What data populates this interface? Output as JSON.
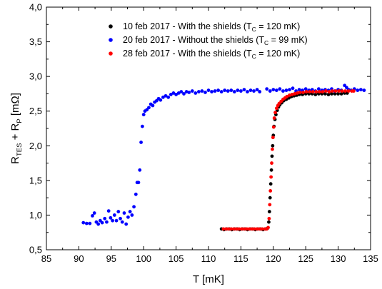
{
  "chart_data": {
    "type": "scatter",
    "xlabel": "T [mK]",
    "ylabel": {
      "R": "R",
      "sub1": "TES",
      "plus": " + R",
      "sub2": "P",
      "unit": " [mΩ]"
    },
    "xlim": [
      85,
      135
    ],
    "ylim": [
      0.5,
      4.0
    ],
    "xticks": [
      "85",
      "90",
      "95",
      "100",
      "105",
      "110",
      "115",
      "120",
      "125",
      "130",
      "135"
    ],
    "yticks": [
      "0,5",
      "1,0",
      "1,5",
      "2,0",
      "2,5",
      "3,0",
      "3,5",
      "4,0"
    ],
    "grid": false,
    "legend_position": "top-center",
    "series": [
      {
        "name": "10 feb 2017 - With the shields (T = 120 mK)",
        "legend": {
          "pre": "10 feb 2017 - With the shields (T",
          "sub": "C",
          "post": " = 120 mK)"
        },
        "color": "#000000",
        "points": [
          [
            112.0,
            0.8
          ],
          [
            112.4,
            0.79
          ],
          [
            112.8,
            0.8
          ],
          [
            113.2,
            0.8
          ],
          [
            113.6,
            0.79
          ],
          [
            114.0,
            0.8
          ],
          [
            114.4,
            0.8
          ],
          [
            114.8,
            0.79
          ],
          [
            115.2,
            0.8
          ],
          [
            115.6,
            0.8
          ],
          [
            116.0,
            0.79
          ],
          [
            116.4,
            0.8
          ],
          [
            116.8,
            0.8
          ],
          [
            117.2,
            0.79
          ],
          [
            117.6,
            0.8
          ],
          [
            118.0,
            0.8
          ],
          [
            118.4,
            0.79
          ],
          [
            118.8,
            0.8
          ],
          [
            119.1,
            0.81
          ],
          [
            119.3,
            0.9
          ],
          [
            119.4,
            1.05
          ],
          [
            119.5,
            1.25
          ],
          [
            119.6,
            1.45
          ],
          [
            119.7,
            1.65
          ],
          [
            119.8,
            1.85
          ],
          [
            119.9,
            2.0
          ],
          [
            120.0,
            2.15
          ],
          [
            120.1,
            2.28
          ],
          [
            120.25,
            2.38
          ],
          [
            120.4,
            2.45
          ],
          [
            120.6,
            2.51
          ],
          [
            120.8,
            2.56
          ],
          [
            121.0,
            2.59
          ],
          [
            121.3,
            2.62
          ],
          [
            121.6,
            2.65
          ],
          [
            122.0,
            2.67
          ],
          [
            122.4,
            2.69
          ],
          [
            122.8,
            2.71
          ],
          [
            123.2,
            2.72
          ],
          [
            123.6,
            2.73
          ],
          [
            124.0,
            2.74
          ],
          [
            124.5,
            2.74
          ],
          [
            125.0,
            2.75
          ],
          [
            125.5,
            2.75
          ],
          [
            126.0,
            2.75
          ],
          [
            126.5,
            2.74
          ],
          [
            127.0,
            2.75
          ],
          [
            127.5,
            2.75
          ],
          [
            128.0,
            2.75
          ],
          [
            128.5,
            2.74
          ],
          [
            129.0,
            2.75
          ],
          [
            129.5,
            2.75
          ],
          [
            130.0,
            2.75
          ],
          [
            130.5,
            2.75
          ],
          [
            131.0,
            2.76
          ],
          [
            131.4,
            2.76
          ]
        ]
      },
      {
        "name": "20 feb 2017 - Without the shields (T = 99 mK)",
        "legend": {
          "pre": "20 feb 2017 - Without the shields (T",
          "sub": "C",
          "post": " = 99 mK)"
        },
        "color": "#0000ff",
        "points": [
          [
            90.7,
            0.89
          ],
          [
            91.2,
            0.88
          ],
          [
            91.7,
            0.88
          ],
          [
            92.1,
            0.99
          ],
          [
            92.4,
            1.03
          ],
          [
            92.7,
            0.9
          ],
          [
            93.0,
            0.87
          ],
          [
            93.3,
            0.92
          ],
          [
            93.6,
            0.89
          ],
          [
            94.0,
            0.95
          ],
          [
            94.3,
            0.9
          ],
          [
            94.6,
            1.06
          ],
          [
            94.9,
            0.96
          ],
          [
            95.2,
            0.92
          ],
          [
            95.5,
            1.0
          ],
          [
            95.8,
            0.92
          ],
          [
            96.1,
            1.05
          ],
          [
            96.4,
            0.95
          ],
          [
            96.7,
            0.9
          ],
          [
            97.0,
            1.03
          ],
          [
            97.3,
            0.87
          ],
          [
            97.6,
            0.97
          ],
          [
            97.9,
            1.05
          ],
          [
            98.2,
            1.0
          ],
          [
            98.5,
            1.12
          ],
          [
            98.8,
            1.3
          ],
          [
            99.0,
            1.47
          ],
          [
            99.2,
            1.47
          ],
          [
            99.4,
            1.65
          ],
          [
            99.6,
            2.05
          ],
          [
            99.8,
            2.28
          ],
          [
            100.0,
            2.45
          ],
          [
            100.2,
            2.5
          ],
          [
            100.5,
            2.52
          ],
          [
            100.8,
            2.55
          ],
          [
            101.1,
            2.6
          ],
          [
            101.4,
            2.58
          ],
          [
            101.7,
            2.63
          ],
          [
            102.0,
            2.65
          ],
          [
            102.3,
            2.68
          ],
          [
            102.6,
            2.66
          ],
          [
            103.0,
            2.7
          ],
          [
            103.4,
            2.72
          ],
          [
            103.8,
            2.7
          ],
          [
            104.2,
            2.74
          ],
          [
            104.6,
            2.76
          ],
          [
            105.0,
            2.74
          ],
          [
            105.4,
            2.76
          ],
          [
            105.8,
            2.78
          ],
          [
            106.2,
            2.75
          ],
          [
            106.6,
            2.78
          ],
          [
            107.0,
            2.77
          ],
          [
            107.5,
            2.79
          ],
          [
            108.0,
            2.76
          ],
          [
            108.5,
            2.78
          ],
          [
            109.0,
            2.79
          ],
          [
            109.5,
            2.77
          ],
          [
            110.0,
            2.8
          ],
          [
            110.5,
            2.78
          ],
          [
            111.0,
            2.79
          ],
          [
            111.5,
            2.8
          ],
          [
            112.0,
            2.78
          ],
          [
            112.5,
            2.8
          ],
          [
            113.0,
            2.79
          ],
          [
            113.5,
            2.8
          ],
          [
            114.0,
            2.78
          ],
          [
            114.5,
            2.8
          ],
          [
            115.0,
            2.79
          ],
          [
            115.5,
            2.81
          ],
          [
            116.0,
            2.78
          ],
          [
            116.5,
            2.8
          ],
          [
            117.0,
            2.79
          ],
          [
            117.5,
            2.81
          ],
          [
            117.9,
            2.78
          ],
          [
            119.0,
            2.82
          ],
          [
            119.5,
            2.79
          ],
          [
            120.0,
            2.81
          ],
          [
            120.5,
            2.8
          ],
          [
            121.0,
            2.82
          ],
          [
            121.5,
            2.79
          ],
          [
            122.0,
            2.8
          ],
          [
            122.5,
            2.81
          ],
          [
            123.0,
            2.83
          ],
          [
            123.5,
            2.79
          ],
          [
            124.0,
            2.81
          ],
          [
            124.5,
            2.8
          ],
          [
            125.0,
            2.82
          ],
          [
            125.5,
            2.8
          ],
          [
            126.0,
            2.81
          ],
          [
            126.5,
            2.79
          ],
          [
            127.0,
            2.82
          ],
          [
            127.5,
            2.8
          ],
          [
            128.0,
            2.81
          ],
          [
            128.5,
            2.8
          ],
          [
            129.0,
            2.82
          ],
          [
            129.5,
            2.79
          ],
          [
            130.0,
            2.81
          ],
          [
            130.5,
            2.8
          ],
          [
            131.0,
            2.87
          ],
          [
            131.3,
            2.84
          ],
          [
            131.6,
            2.81
          ],
          [
            132.0,
            2.8
          ],
          [
            132.5,
            2.82
          ],
          [
            133.0,
            2.8
          ],
          [
            133.5,
            2.81
          ],
          [
            134.0,
            2.8
          ]
        ]
      },
      {
        "name": "28 feb 2017 - With the shields (T = 120 mK)",
        "legend": {
          "pre": "28 feb 2017 - With the shields (T",
          "sub": "C",
          "post": " = 120 mK)"
        },
        "color": "#ff0000",
        "points": [
          [
            112.3,
            0.8
          ],
          [
            112.7,
            0.8
          ],
          [
            113.1,
            0.8
          ],
          [
            113.5,
            0.8
          ],
          [
            113.9,
            0.8
          ],
          [
            114.3,
            0.8
          ],
          [
            114.7,
            0.8
          ],
          [
            115.1,
            0.8
          ],
          [
            115.5,
            0.8
          ],
          [
            115.9,
            0.8
          ],
          [
            116.3,
            0.8
          ],
          [
            116.7,
            0.8
          ],
          [
            117.1,
            0.8
          ],
          [
            117.5,
            0.8
          ],
          [
            117.9,
            0.8
          ],
          [
            118.3,
            0.8
          ],
          [
            118.7,
            0.8
          ],
          [
            119.0,
            0.8
          ],
          [
            119.2,
            0.82
          ],
          [
            119.35,
            0.95
          ],
          [
            119.45,
            1.15
          ],
          [
            119.55,
            1.35
          ],
          [
            119.65,
            1.55
          ],
          [
            119.75,
            1.75
          ],
          [
            119.85,
            1.95
          ],
          [
            119.95,
            2.12
          ],
          [
            120.05,
            2.27
          ],
          [
            120.15,
            2.4
          ],
          [
            120.3,
            2.48
          ],
          [
            120.5,
            2.54
          ],
          [
            120.7,
            2.58
          ],
          [
            120.9,
            2.61
          ],
          [
            121.2,
            2.64
          ],
          [
            121.5,
            2.67
          ],
          [
            121.8,
            2.69
          ],
          [
            122.1,
            2.71
          ],
          [
            122.5,
            2.73
          ],
          [
            122.9,
            2.74
          ],
          [
            123.3,
            2.75
          ],
          [
            123.7,
            2.76
          ],
          [
            124.1,
            2.77
          ],
          [
            124.6,
            2.77
          ],
          [
            125.1,
            2.78
          ],
          [
            125.6,
            2.78
          ],
          [
            126.1,
            2.78
          ],
          [
            126.6,
            2.78
          ],
          [
            127.1,
            2.78
          ],
          [
            127.6,
            2.78
          ],
          [
            128.1,
            2.79
          ],
          [
            128.6,
            2.78
          ],
          [
            129.1,
            2.79
          ],
          [
            129.6,
            2.79
          ],
          [
            130.1,
            2.79
          ],
          [
            130.6,
            2.79
          ],
          [
            131.1,
            2.79
          ],
          [
            131.6,
            2.79
          ],
          [
            132.1,
            2.79
          ],
          [
            132.4,
            2.79
          ]
        ]
      }
    ]
  }
}
